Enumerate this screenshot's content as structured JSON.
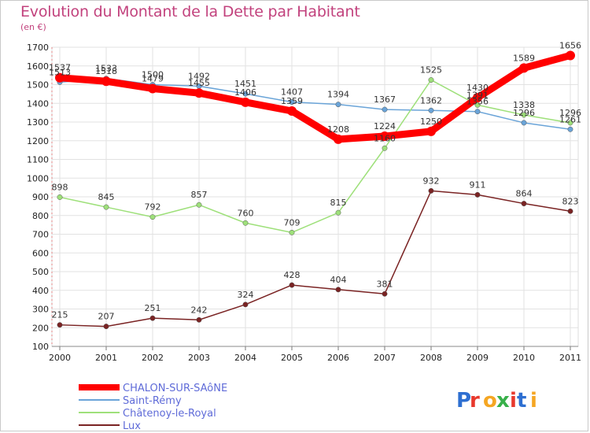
{
  "header": {
    "title": "Evolution du Montant de la Dette par Habitant",
    "unit": "(en €)"
  },
  "logo": {
    "text": "Proxiti",
    "colors": [
      "#2e6fd1",
      "#e8392d",
      "#f5a623",
      "#38b04a",
      "#e8392d",
      "#2e6fd1",
      "#f5a623"
    ]
  },
  "chart_data": {
    "type": "line",
    "title": "Evolution du Montant de la Dette par Habitant",
    "ylabel": "(en €)",
    "xlabel": "",
    "x": [
      "2000",
      "2001",
      "2002",
      "2003",
      "2004",
      "2005",
      "2006",
      "2007",
      "2008",
      "2009",
      "2010",
      "2011"
    ],
    "ylim": [
      100,
      1700
    ],
    "yticks": [
      100,
      200,
      300,
      400,
      500,
      600,
      700,
      800,
      900,
      1000,
      1100,
      1200,
      1300,
      1400,
      1500,
      1600,
      1700
    ],
    "grid": true,
    "legend_position": "bottom-left",
    "series": [
      {
        "name": "CHALON-SUR-SAôNE",
        "color": "#ff0000",
        "width": 9,
        "values": [
          1537,
          1518,
          1479,
          1455,
          1406,
          1359,
          1208,
          1224,
          1250,
          1430,
          1589,
          1656
        ]
      },
      {
        "name": "Saint-Rémy",
        "color": "#6aa4d8",
        "width": 1.5,
        "values": [
          1513,
          1533,
          1500,
          1492,
          1451,
          1407,
          1394,
          1367,
          1362,
          1356,
          1296,
          1261
        ]
      },
      {
        "name": "Châtenoy-le-Royal",
        "color": "#9ee07a",
        "width": 1.5,
        "values": [
          898,
          845,
          792,
          857,
          760,
          709,
          815,
          1160,
          1525,
          1391,
          1338,
          1296
        ]
      },
      {
        "name": "Lux",
        "color": "#7a2323",
        "width": 1.5,
        "values": [
          215,
          207,
          251,
          242,
          324,
          428,
          404,
          381,
          932,
          911,
          864,
          823
        ]
      }
    ]
  }
}
